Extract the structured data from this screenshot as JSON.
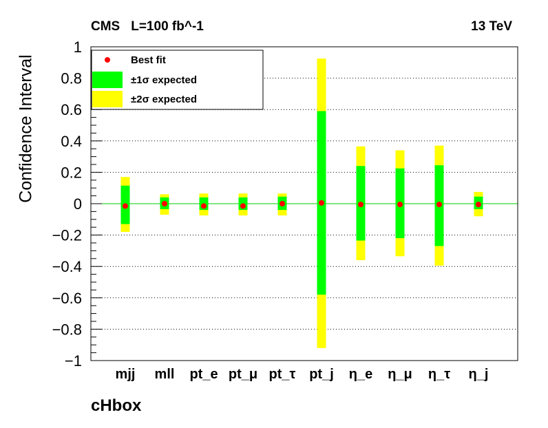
{
  "header": {
    "experiment": "CMS",
    "luminosity": "L=100 fb^-1",
    "energy": "13 TeV"
  },
  "chart_data": {
    "type": "error-band",
    "title": "cHbox",
    "xlabel": "",
    "ylabel": "Confidence Interval",
    "ylim": [
      -1,
      1
    ],
    "yticks": [
      "1",
      "0.8",
      "0.6",
      "0.4",
      "0.2",
      "0",
      "−0.2",
      "−0.4",
      "−0.6",
      "−0.8",
      "−1"
    ],
    "grid": "horizontal dotted",
    "reference_line": 0,
    "categories": [
      "mjj",
      "mll",
      "pt_e",
      "pt_μ",
      "pt_τ",
      "pt_j",
      "η_e",
      "η_μ",
      "η_τ",
      "η_j"
    ],
    "best_fit": [
      -0.015,
      0.0,
      -0.015,
      -0.015,
      0.0,
      0.005,
      -0.005,
      -0.005,
      -0.005,
      -0.005
    ],
    "one_sigma": [
      [
        -0.13,
        0.115
      ],
      [
        -0.035,
        0.04
      ],
      [
        -0.04,
        0.04
      ],
      [
        -0.04,
        0.04
      ],
      [
        -0.04,
        0.045
      ],
      [
        -0.58,
        0.59
      ],
      [
        -0.235,
        0.24
      ],
      [
        -0.22,
        0.225
      ],
      [
        -0.27,
        0.245
      ],
      [
        -0.035,
        0.045
      ]
    ],
    "two_sigma": [
      [
        -0.18,
        0.17
      ],
      [
        -0.07,
        0.06
      ],
      [
        -0.075,
        0.065
      ],
      [
        -0.075,
        0.065
      ],
      [
        -0.075,
        0.065
      ],
      [
        -0.92,
        0.925
      ],
      [
        -0.36,
        0.365
      ],
      [
        -0.335,
        0.34
      ],
      [
        -0.395,
        0.37
      ],
      [
        -0.08,
        0.075
      ]
    ],
    "legend": {
      "placement": "top-left",
      "entries": [
        {
          "label": "Best fit",
          "color": "#ff0000",
          "marker": "circle"
        },
        {
          "label": "±1σ expected",
          "color": "#00ff00",
          "marker": "box"
        },
        {
          "label": "±2σ expected",
          "color": "#ffff00",
          "marker": "box"
        }
      ]
    },
    "colors": {
      "best_fit": "#ff0000",
      "one_sigma": "#00ff00",
      "two_sigma": "#ffff00",
      "zero_line": "#00cc00",
      "grid": "#000000"
    }
  }
}
